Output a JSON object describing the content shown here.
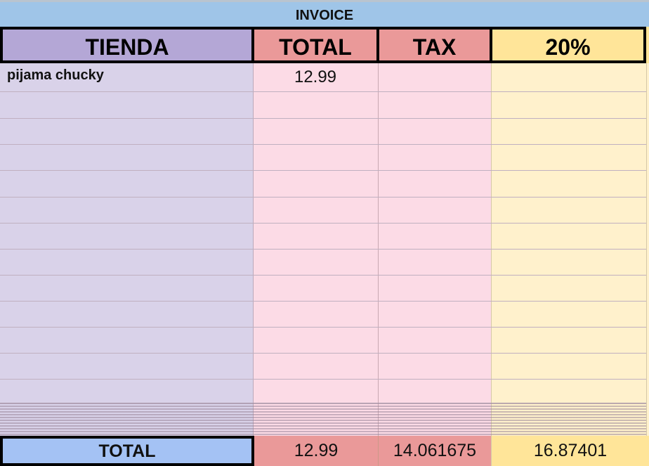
{
  "title": "INVOICE",
  "headers": {
    "store": "TIENDA",
    "total": "TOTAL",
    "tax": "TAX",
    "rate": "20%"
  },
  "items": [
    {
      "store": "pijama chucky",
      "total": "12.99",
      "tax": "",
      "rate": ""
    }
  ],
  "totals": {
    "label": "TOTAL",
    "total": "12.99",
    "tax": "14.061675",
    "rate": "16.87401"
  },
  "colors": {
    "title_bg": "#9fc5e8",
    "store_header": "#b4a7d6",
    "money_header": "#ea9999",
    "rate_header": "#ffe599",
    "total_label_bg": "#a4c2f4"
  }
}
